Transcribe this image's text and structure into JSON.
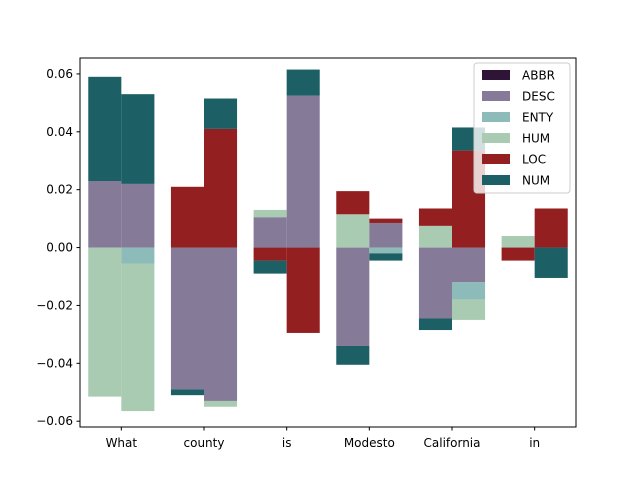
{
  "chart_data": {
    "type": "bar",
    "stacked": true,
    "categories": [
      "What",
      "county",
      "is",
      "Modesto",
      "California",
      "in"
    ],
    "bars_per_category": 2,
    "ylim": [
      -0.062,
      0.0655
    ],
    "yticks": [
      -0.06,
      -0.04,
      -0.02,
      0.0,
      0.02,
      0.04,
      0.06
    ],
    "ytick_labels": [
      "−0.06",
      "−0.04",
      "−0.02",
      "0.00",
      "0.02",
      "0.04",
      "0.06"
    ],
    "legend": {
      "position": "top-right",
      "entries": [
        "ABBR",
        "DESC",
        "ENTY",
        "HUM",
        "LOC",
        "NUM"
      ]
    },
    "colors": {
      "ABBR": "#2e1437",
      "DESC": "#857a98",
      "ENTY": "#8cbbb9",
      "HUM": "#a9cbb1",
      "LOC": "#931f20",
      "NUM": "#1c5f64"
    },
    "series": [
      {
        "name": "ABBR",
        "values": [
          [
            0,
            0
          ],
          [
            0,
            0
          ],
          [
            0,
            0
          ],
          [
            0,
            0
          ],
          [
            0,
            0
          ],
          [
            0,
            0
          ]
        ]
      },
      {
        "name": "DESC",
        "values": [
          [
            0.023,
            0.022
          ],
          [
            -0.049,
            -0.053
          ],
          [
            0.0105,
            0.0525
          ],
          [
            -0.034,
            0.0085
          ],
          [
            -0.0245,
            -0.012
          ],
          [
            0,
            0
          ]
        ]
      },
      {
        "name": "ENTY",
        "values": [
          [
            0,
            -0.0055
          ],
          [
            0,
            0
          ],
          [
            0,
            0
          ],
          [
            0,
            -0.002
          ],
          [
            0,
            -0.006
          ],
          [
            0,
            0
          ]
        ]
      },
      {
        "name": "HUM",
        "values": [
          [
            -0.0515,
            -0.051
          ],
          [
            0,
            -0.002
          ],
          [
            0.0025,
            0
          ],
          [
            0.0115,
            0
          ],
          [
            0.0075,
            -0.007
          ],
          [
            0.004,
            0
          ]
        ]
      },
      {
        "name": "LOC",
        "values": [
          [
            0,
            0
          ],
          [
            0.021,
            0.041
          ],
          [
            -0.0045,
            -0.0295
          ],
          [
            0.008,
            0.0015
          ],
          [
            0.006,
            0.0335
          ],
          [
            -0.0045,
            0.0135
          ]
        ]
      },
      {
        "name": "NUM",
        "values": [
          [
            0.036,
            0.031
          ],
          [
            -0.002,
            0.0105
          ],
          [
            -0.0045,
            0.009
          ],
          [
            -0.0065,
            -0.0025
          ],
          [
            -0.004,
            0.008
          ],
          [
            0,
            -0.0105
          ]
        ]
      }
    ]
  }
}
